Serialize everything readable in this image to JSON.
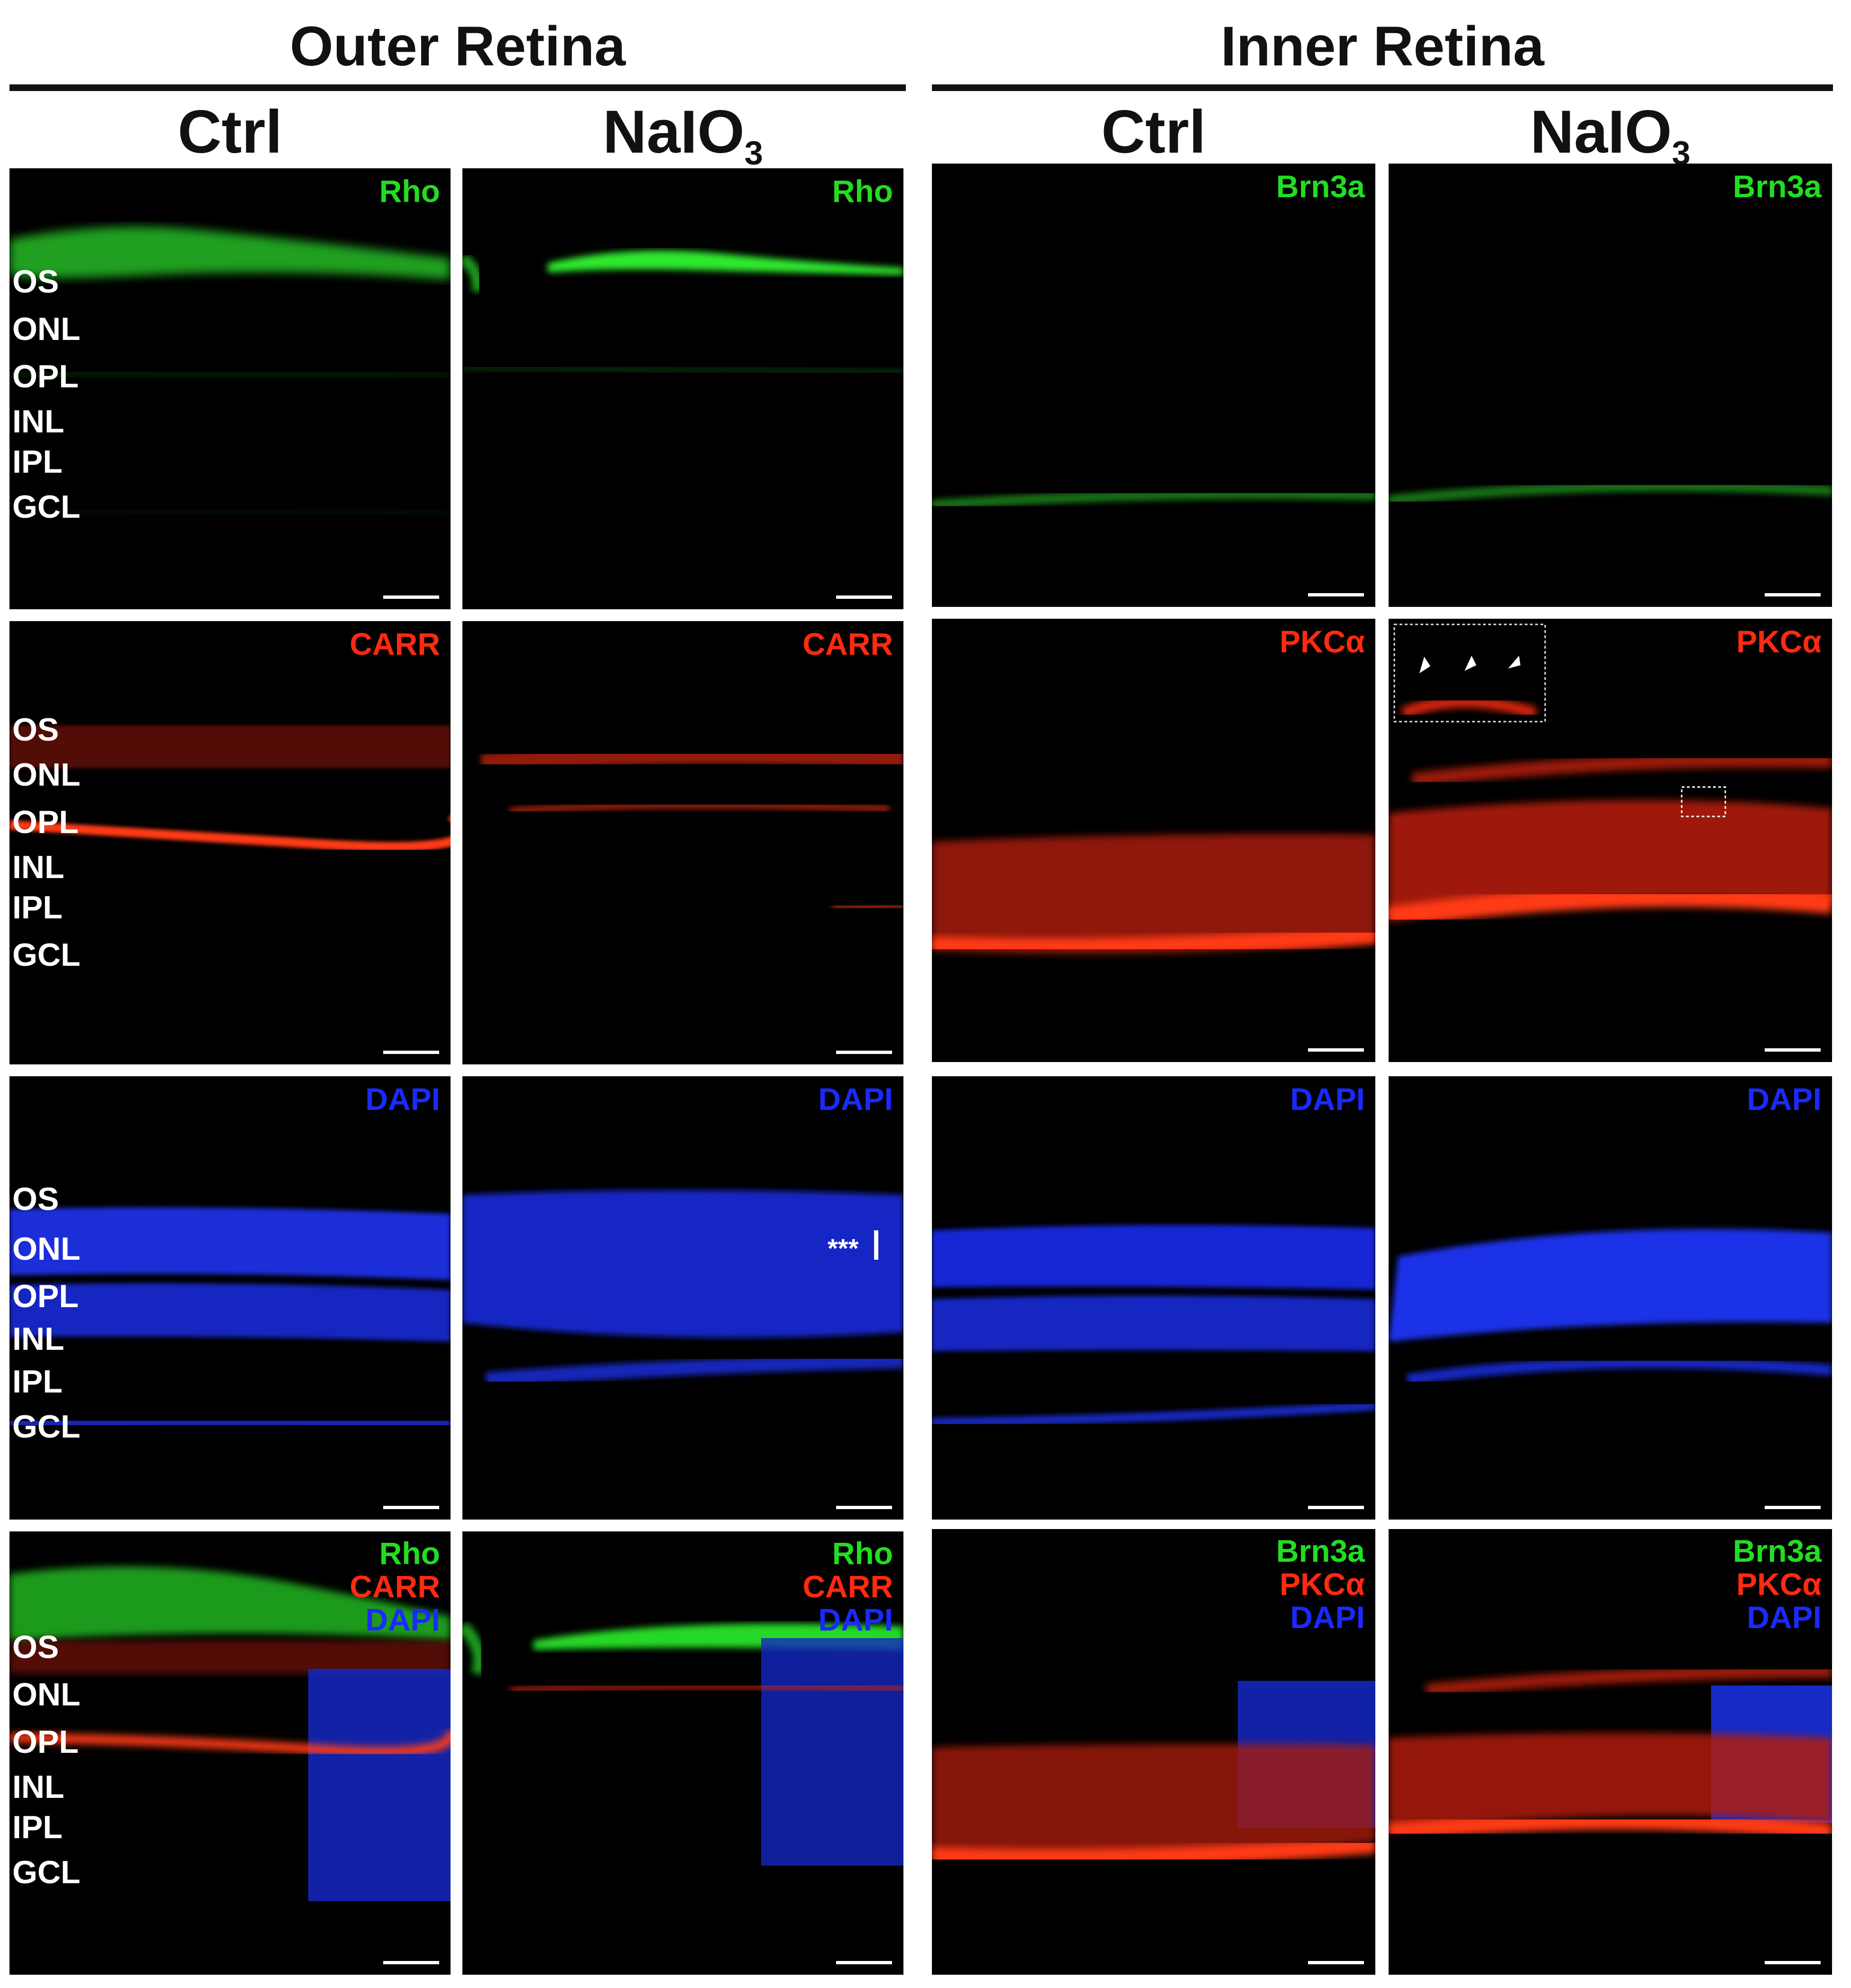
{
  "headers": {
    "outer": "Outer Retina",
    "inner": "Inner Retina",
    "ctrl": "Ctrl",
    "naio_base": "NaIO",
    "naio_sub": "3"
  },
  "layers": [
    "OS",
    "ONL",
    "OPL",
    "INL",
    "IPL",
    "GCL"
  ],
  "channels": {
    "rho": "Rho",
    "carr": "CARR",
    "dapi": "DAPI",
    "brn3a": "Brn3a",
    "pkca": "PKCα"
  },
  "colors": {
    "green": "#22dd22",
    "red": "#ff2a10",
    "blue": "#1a2aff",
    "background": "#000000"
  },
  "annotations": {
    "stars": "***"
  }
}
